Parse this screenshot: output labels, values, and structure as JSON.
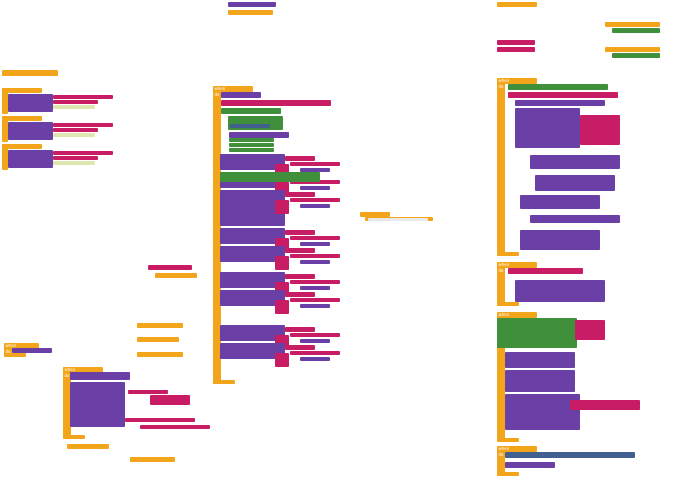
{
  "workspace": {
    "event_handlers": [
      {
        "head": "when",
        "body": "do"
      },
      {
        "head": "when",
        "body": "do"
      },
      {
        "head": "when",
        "body": "do"
      },
      {
        "head": "when",
        "body": "do"
      },
      {
        "head": "when",
        "body": "do"
      },
      {
        "head": "when",
        "body": "do"
      },
      {
        "head": "when",
        "body": "do"
      }
    ]
  }
}
